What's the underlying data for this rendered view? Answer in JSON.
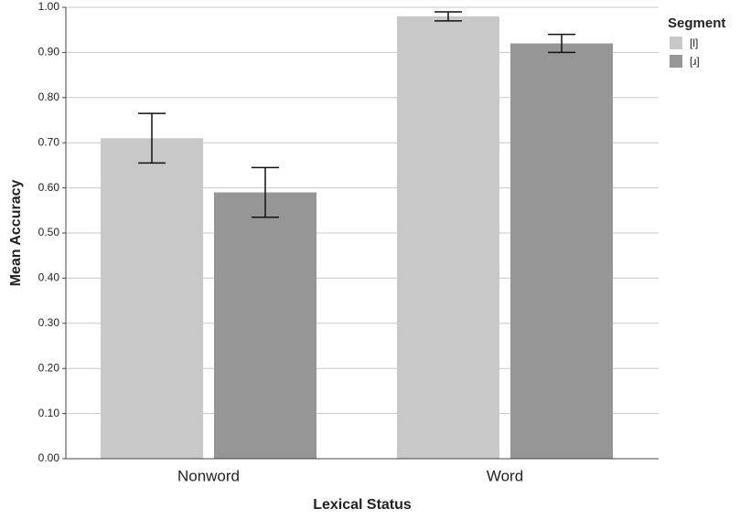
{
  "chart_data": {
    "type": "bar",
    "x_label": "Lexical Status",
    "y_label": "Mean Accuracy",
    "legend_title": "Segment",
    "categories": [
      "Nonword",
      "Word"
    ],
    "series": [
      {
        "name": "[l]",
        "color": "#c8c8c8",
        "values": [
          0.71,
          0.98
        ],
        "error": [
          0.055,
          0.01
        ]
      },
      {
        "name": "[ɹ]",
        "color": "#969696",
        "values": [
          0.59,
          0.92
        ],
        "error": [
          0.055,
          0.02
        ]
      }
    ],
    "ylim": [
      0,
      1
    ],
    "yticks": [
      {
        "value": 0,
        "label": "0.00"
      },
      {
        "value": 0.1,
        "label": "0.10"
      },
      {
        "value": 0.2,
        "label": "0.20"
      },
      {
        "value": 0.3,
        "label": "0.30"
      },
      {
        "value": 0.4,
        "label": "0.40"
      },
      {
        "value": 0.5,
        "label": "0.50"
      },
      {
        "value": 0.6,
        "label": "0.60"
      },
      {
        "value": 0.7,
        "label": "0.70"
      },
      {
        "value": 0.8,
        "label": "0.80"
      },
      {
        "value": 0.9,
        "label": "0.90"
      },
      {
        "value": 1,
        "label": "1.00"
      }
    ],
    "grid": true,
    "legend": "right"
  }
}
